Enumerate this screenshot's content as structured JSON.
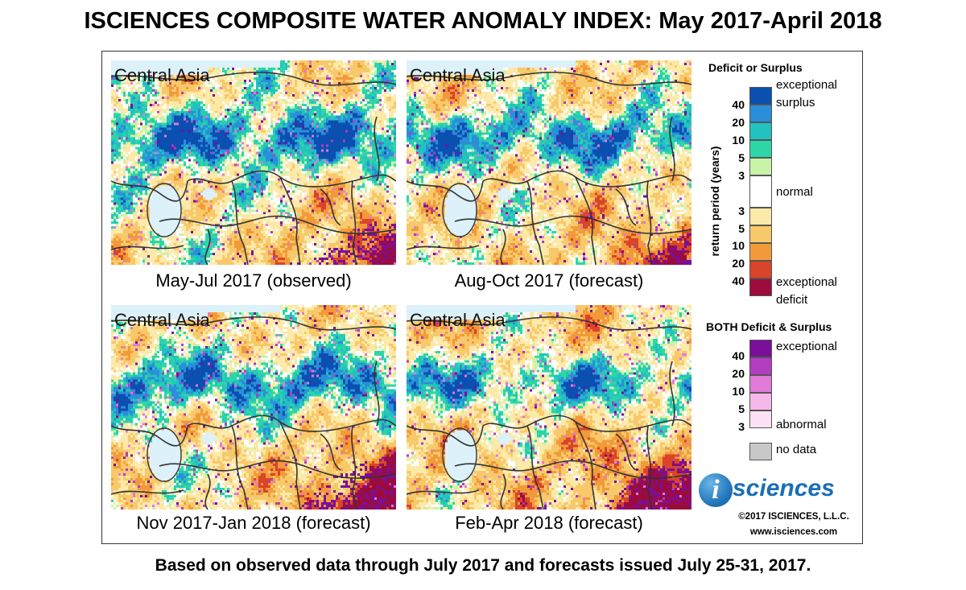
{
  "title": "ISCIENCES COMPOSITE WATER ANOMALY INDEX: May 2017-April 2018",
  "footer": "Based on observed data through July 2017 and forecasts issued July 25-31, 2017.",
  "panels": [
    {
      "region": "Central Asia",
      "caption": "May-Jul 2017 (observed)"
    },
    {
      "region": "Central Asia",
      "caption": "Aug-Oct 2017 (forecast)"
    },
    {
      "region": "Central Asia",
      "caption": "Nov 2017-Jan 2018 (forecast)"
    },
    {
      "region": "Central Asia",
      "caption": "Feb-Apr 2018 (forecast)"
    }
  ],
  "legend": {
    "deficit_surplus_title": "Deficit or Surplus",
    "axis_label": "return period (years)",
    "surplus_numbers": [
      "40",
      "20",
      "10",
      "5",
      "3"
    ],
    "deficit_numbers": [
      "3",
      "5",
      "10",
      "20",
      "40"
    ],
    "label_exceptional_surplus_1": "exceptional",
    "label_exceptional_surplus_2": "surplus",
    "label_normal": "normal",
    "label_exceptional_deficit_1": "exceptional",
    "label_exceptional_deficit_2": "deficit",
    "both_title": "BOTH Deficit & Surplus",
    "both_numbers": [
      "40",
      "20",
      "10",
      "5",
      "3"
    ],
    "label_both_exceptional": "exceptional",
    "label_both_abnormal": "abnormal",
    "label_no_data": "no data",
    "colors": {
      "surplus": [
        "#0b4fb0",
        "#2a8fd8",
        "#22c2c0",
        "#2ed6a6",
        "#c8f2a8"
      ],
      "normal": "#ffffff",
      "deficit": [
        "#fde9a8",
        "#f7c96b",
        "#f29a3a",
        "#d9442a",
        "#9b0c3c"
      ],
      "both": [
        "#7a0f9a",
        "#b33cc0",
        "#e17ad8",
        "#f6b8ea",
        "#fde0f4"
      ],
      "no_data": "#c8c8c8",
      "water": "#dcf1fa"
    }
  },
  "logo": {
    "i": "i",
    "text": "sciences"
  },
  "copyright": "©2017 ISCIENCES, L.L.C.",
  "website": "www.isciences.com"
}
